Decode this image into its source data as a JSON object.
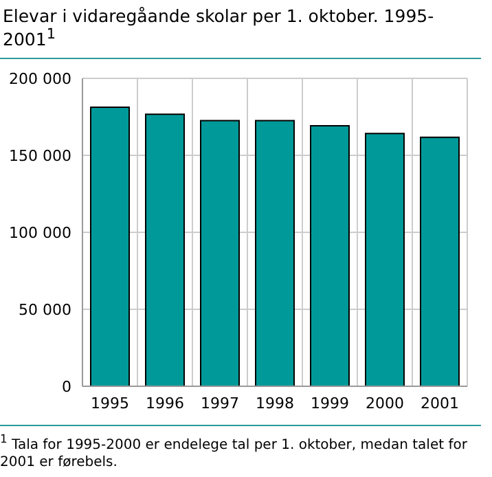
{
  "chart_data": {
    "type": "bar",
    "title": "Elevar i vidaregåande skolar per 1. oktober. 1995-2001$^{1}$",
    "categories": [
      "1995",
      "1996",
      "1997",
      "1998",
      "1999",
      "2000",
      "2001"
    ],
    "values": [
      181300,
      176700,
      172500,
      172500,
      169200,
      164200,
      161700
    ],
    "color": "#009999",
    "ylim": [
      0,
      200000
    ],
    "yticks": [
      {
        "value": 0,
        "label": "0"
      },
      {
        "value": 50000,
        "label": "50 000"
      },
      {
        "value": 100000,
        "label": "100 000"
      },
      {
        "value": 150000,
        "label": "150 000"
      },
      {
        "value": 200000,
        "label": "200 000"
      }
    ],
    "grid": true,
    "annotations": [
      "$^{1}$ Tala for 1995-2000 er endelege tal per 1. oktober, medan talet for 2001 er førebels."
    ]
  }
}
